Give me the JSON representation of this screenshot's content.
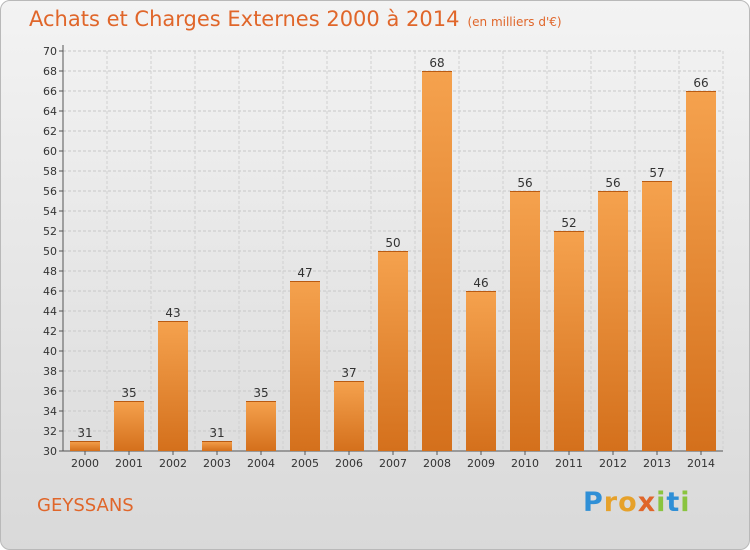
{
  "chart_data": {
    "type": "bar",
    "title": "Achats et Charges Externes 2000 à 2014",
    "subtitle": "(en milliers d'€)",
    "categories": [
      "2000",
      "2001",
      "2002",
      "2003",
      "2004",
      "2005",
      "2006",
      "2007",
      "2008",
      "2009",
      "2010",
      "2011",
      "2012",
      "2013",
      "2014"
    ],
    "values": [
      31,
      35,
      43,
      31,
      35,
      47,
      37,
      50,
      68,
      46,
      56,
      52,
      56,
      57,
      66
    ],
    "ylim": [
      30,
      70
    ],
    "ytick_step": 2,
    "grid": true,
    "bar_color": "#f08a2c"
  },
  "commune": "GEYSSANS",
  "logo": {
    "letters": [
      "P",
      "r",
      "o",
      "x",
      "i",
      "t",
      "i"
    ],
    "colors": [
      "#2f8fd6",
      "#e6a12a",
      "#e6a12a",
      "#e0662a",
      "#8ac43f",
      "#2f8fd6",
      "#8ac43f"
    ]
  }
}
